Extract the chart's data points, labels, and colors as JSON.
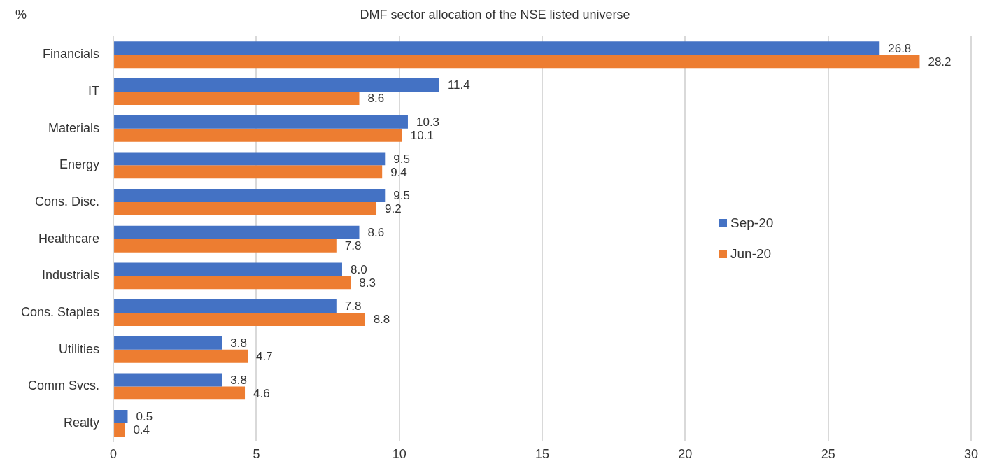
{
  "chart_data": {
    "type": "bar",
    "orientation": "horizontal",
    "title": "DMF sector allocation of the NSE listed universe",
    "annotations": [
      "%"
    ],
    "categories": [
      "Financials",
      "IT",
      "Materials",
      "Energy",
      "Cons. Disc.",
      "Healthcare",
      "Industrials",
      "Cons. Staples",
      "Utilities",
      "Comm Svcs.",
      "Realty"
    ],
    "series": [
      {
        "name": "Sep-20",
        "color": "#4472c4",
        "values": [
          26.8,
          11.4,
          10.3,
          9.5,
          9.5,
          8.6,
          8.0,
          7.8,
          3.8,
          3.8,
          0.5
        ],
        "value_labels": [
          "26.8",
          "11.4",
          "10.3",
          "9.5",
          "9.5",
          "8.6",
          "8.0",
          "7.8",
          "3.8",
          "3.8",
          "0.5"
        ]
      },
      {
        "name": "Jun-20",
        "color": "#ed7d31",
        "values": [
          28.2,
          8.6,
          10.1,
          9.4,
          9.2,
          7.8,
          8.3,
          8.8,
          4.7,
          4.6,
          0.4
        ],
        "value_labels": [
          "28.2",
          "8.6",
          "10.1",
          "9.4",
          "9.2",
          "7.8",
          "8.3",
          "8.8",
          "4.7",
          "4.6",
          "0.4"
        ]
      }
    ],
    "xlim": [
      0,
      30
    ],
    "xticks": [
      0,
      5,
      10,
      15,
      20,
      25,
      30
    ],
    "grid": "x",
    "legend": "right"
  }
}
